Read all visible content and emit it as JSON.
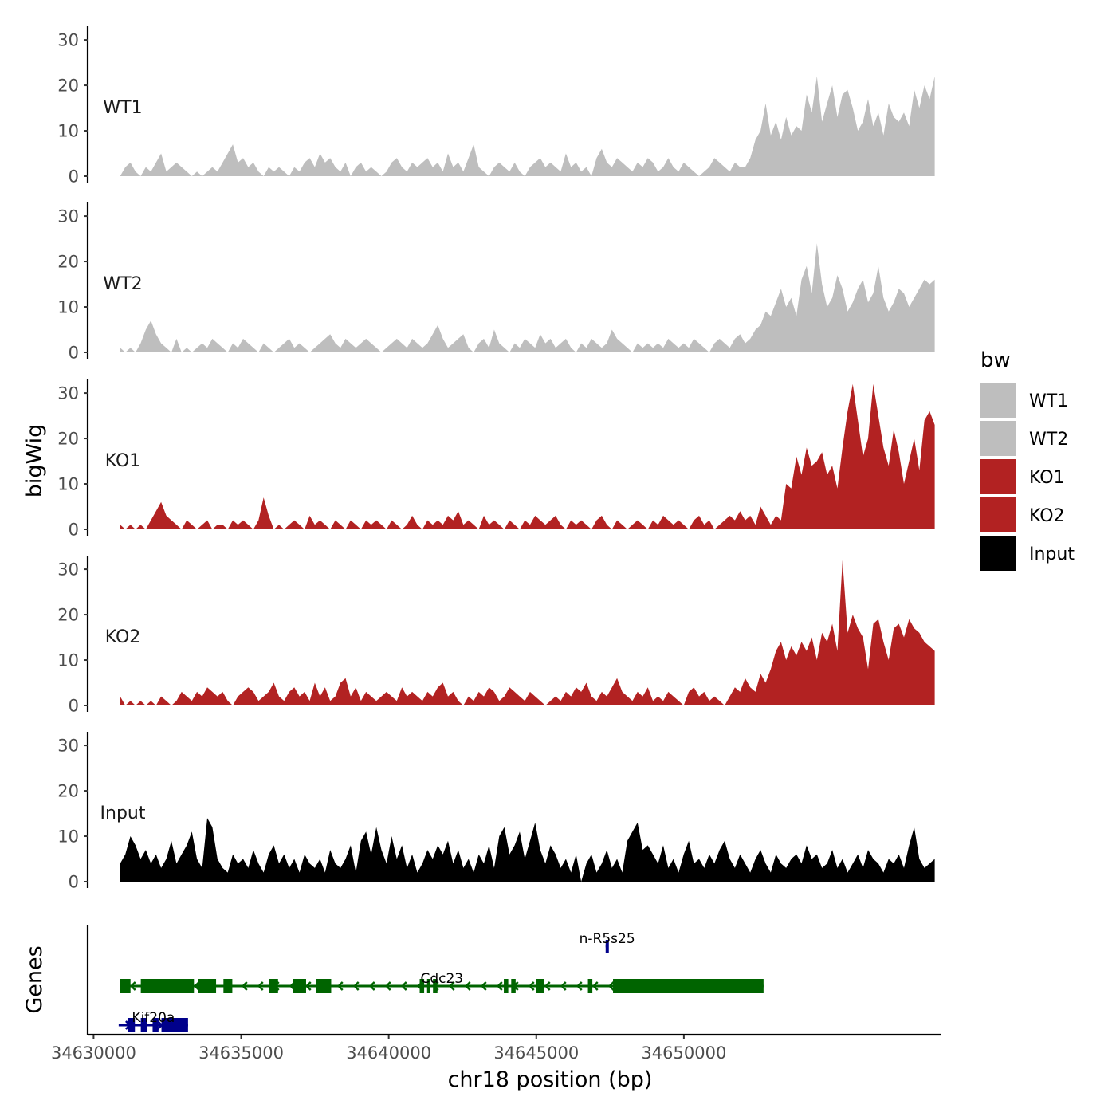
{
  "chart_data": {
    "type": "area",
    "ylabel": "bigWig",
    "genes_label": "Genes",
    "xlabel": "chr18 position (bp)",
    "xlim": [
      34629800,
      34658700
    ],
    "data_xrange": [
      34630900,
      34658500
    ],
    "ylim": [
      0,
      33
    ],
    "yticks": [
      "0",
      "10",
      "20",
      "30"
    ],
    "xticks": [
      {
        "value": 34630000,
        "label": "34630000"
      },
      {
        "value": 34635000,
        "label": "34635000"
      },
      {
        "value": 34640000,
        "label": "34640000"
      },
      {
        "value": 34645000,
        "label": "34645000"
      },
      {
        "value": 34650000,
        "label": "34650000"
      }
    ],
    "legend": {
      "title": "bw",
      "position": "right",
      "entries": [
        {
          "label": "WT1",
          "color": "#BEBEBE"
        },
        {
          "label": "WT2",
          "color": "#BEBEBE"
        },
        {
          "label": "KO1",
          "color": "#B22222"
        },
        {
          "label": "KO2",
          "color": "#B22222"
        },
        {
          "label": "Input",
          "color": "#000000"
        }
      ]
    },
    "series": [
      {
        "name": "WT1",
        "color": "#BEBEBE",
        "values": [
          0,
          2,
          3,
          1,
          0,
          2,
          1,
          3,
          5,
          1,
          2,
          3,
          2,
          1,
          0,
          1,
          0,
          1,
          2,
          1,
          3,
          5,
          7,
          3,
          4,
          2,
          3,
          1,
          0,
          2,
          1,
          2,
          1,
          0,
          2,
          1,
          3,
          4,
          2,
          5,
          3,
          4,
          2,
          1,
          3,
          0,
          2,
          3,
          1,
          2,
          1,
          0,
          1,
          3,
          4,
          2,
          1,
          3,
          2,
          3,
          4,
          2,
          3,
          1,
          5,
          2,
          3,
          1,
          4,
          7,
          2,
          1,
          0,
          2,
          3,
          2,
          1,
          3,
          1,
          0,
          2,
          3,
          4,
          2,
          3,
          2,
          1,
          5,
          2,
          3,
          1,
          2,
          0,
          4,
          6,
          3,
          2,
          4,
          3,
          2,
          1,
          3,
          2,
          4,
          3,
          1,
          2,
          4,
          2,
          1,
          3,
          2,
          1,
          0,
          1,
          2,
          4,
          3,
          2,
          1,
          3,
          2,
          2,
          4,
          8,
          10,
          16,
          9,
          12,
          8,
          13,
          9,
          11,
          10,
          18,
          14,
          22,
          12,
          16,
          20,
          13,
          18,
          19,
          15,
          10,
          12,
          17,
          11,
          14,
          9,
          16,
          13,
          12,
          14,
          11,
          19,
          15,
          20,
          17,
          22
        ]
      },
      {
        "name": "WT2",
        "color": "#BEBEBE",
        "values": [
          1,
          0,
          1,
          0,
          2,
          5,
          7,
          4,
          2,
          1,
          0,
          3,
          0,
          1,
          0,
          1,
          2,
          1,
          3,
          2,
          1,
          0,
          2,
          1,
          3,
          2,
          1,
          0,
          2,
          1,
          0,
          1,
          2,
          3,
          1,
          2,
          1,
          0,
          1,
          2,
          3,
          4,
          2,
          1,
          3,
          2,
          1,
          2,
          3,
          2,
          1,
          0,
          1,
          2,
          3,
          2,
          1,
          3,
          2,
          1,
          2,
          4,
          6,
          3,
          1,
          2,
          3,
          4,
          1,
          0,
          2,
          3,
          1,
          5,
          2,
          1,
          0,
          2,
          1,
          3,
          2,
          1,
          4,
          2,
          3,
          1,
          2,
          3,
          1,
          0,
          2,
          1,
          3,
          2,
          1,
          2,
          5,
          3,
          2,
          1,
          0,
          2,
          1,
          2,
          1,
          2,
          1,
          3,
          2,
          1,
          2,
          1,
          3,
          2,
          1,
          0,
          2,
          3,
          2,
          1,
          3,
          4,
          2,
          3,
          5,
          6,
          9,
          8,
          11,
          14,
          10,
          12,
          8,
          16,
          19,
          13,
          24,
          15,
          10,
          12,
          17,
          14,
          9,
          11,
          14,
          16,
          11,
          13,
          19,
          12,
          9,
          11,
          14,
          13,
          10,
          12,
          14,
          16,
          15,
          16
        ]
      },
      {
        "name": "KO1",
        "color": "#B22222",
        "values": [
          1,
          0,
          1,
          0,
          1,
          0,
          2,
          4,
          6,
          3,
          2,
          1,
          0,
          2,
          1,
          0,
          1,
          2,
          0,
          1,
          1,
          0,
          2,
          1,
          2,
          1,
          0,
          2,
          7,
          3,
          0,
          1,
          0,
          1,
          2,
          1,
          0,
          3,
          1,
          2,
          1,
          0,
          2,
          1,
          0,
          2,
          1,
          0,
          2,
          1,
          2,
          1,
          0,
          2,
          1,
          0,
          1,
          3,
          1,
          0,
          2,
          1,
          2,
          1,
          3,
          2,
          4,
          1,
          2,
          1,
          0,
          3,
          1,
          2,
          1,
          0,
          2,
          1,
          0,
          2,
          1,
          3,
          2,
          1,
          2,
          3,
          1,
          0,
          2,
          1,
          2,
          1,
          0,
          2,
          3,
          1,
          0,
          2,
          1,
          0,
          1,
          2,
          1,
          0,
          2,
          1,
          3,
          2,
          1,
          2,
          1,
          0,
          2,
          3,
          1,
          2,
          0,
          1,
          2,
          3,
          2,
          4,
          2,
          3,
          1,
          5,
          3,
          1,
          3,
          2,
          10,
          9,
          16,
          12,
          18,
          14,
          15,
          17,
          12,
          14,
          9,
          18,
          26,
          32,
          24,
          16,
          20,
          32,
          25,
          18,
          14,
          22,
          17,
          10,
          15,
          20,
          13,
          24,
          26,
          23
        ]
      },
      {
        "name": "KO2",
        "color": "#B22222",
        "values": [
          2,
          0,
          1,
          0,
          1,
          0,
          1,
          0,
          2,
          1,
          0,
          1,
          3,
          2,
          1,
          3,
          2,
          4,
          3,
          2,
          3,
          1,
          0,
          2,
          3,
          4,
          3,
          1,
          2,
          3,
          5,
          2,
          1,
          3,
          4,
          2,
          3,
          1,
          5,
          2,
          4,
          1,
          2,
          5,
          6,
          2,
          4,
          1,
          3,
          2,
          1,
          2,
          3,
          2,
          1,
          4,
          2,
          3,
          2,
          1,
          3,
          2,
          4,
          5,
          2,
          3,
          1,
          0,
          2,
          1,
          3,
          2,
          4,
          3,
          1,
          2,
          4,
          3,
          2,
          1,
          3,
          2,
          1,
          0,
          1,
          2,
          1,
          3,
          2,
          4,
          3,
          5,
          2,
          1,
          3,
          2,
          4,
          6,
          3,
          2,
          1,
          3,
          2,
          4,
          1,
          2,
          1,
          3,
          2,
          1,
          0,
          3,
          4,
          2,
          3,
          1,
          2,
          1,
          0,
          2,
          4,
          3,
          6,
          4,
          3,
          7,
          5,
          8,
          12,
          14,
          10,
          13,
          11,
          14,
          12,
          15,
          10,
          16,
          14,
          18,
          12,
          32,
          16,
          20,
          17,
          15,
          8,
          18,
          19,
          14,
          10,
          17,
          18,
          15,
          19,
          17,
          16,
          14,
          13,
          12
        ]
      },
      {
        "name": "Input",
        "color": "#000000",
        "values": [
          4,
          6,
          10,
          8,
          5,
          7,
          4,
          6,
          3,
          5,
          9,
          4,
          6,
          8,
          11,
          5,
          3,
          14,
          12,
          5,
          3,
          2,
          6,
          4,
          5,
          3,
          7,
          4,
          2,
          6,
          8,
          4,
          6,
          3,
          5,
          2,
          6,
          4,
          3,
          5,
          2,
          7,
          4,
          3,
          5,
          8,
          2,
          9,
          11,
          6,
          12,
          7,
          4,
          10,
          5,
          8,
          3,
          6,
          2,
          4,
          7,
          5,
          8,
          6,
          9,
          4,
          7,
          3,
          5,
          2,
          6,
          4,
          8,
          3,
          10,
          12,
          6,
          8,
          11,
          5,
          9,
          13,
          7,
          4,
          8,
          6,
          3,
          5,
          2,
          6,
          0,
          4,
          6,
          2,
          4,
          7,
          3,
          5,
          2,
          9,
          11,
          13,
          7,
          8,
          6,
          4,
          8,
          3,
          5,
          2,
          6,
          9,
          4,
          5,
          3,
          6,
          4,
          7,
          9,
          5,
          3,
          6,
          4,
          2,
          5,
          7,
          4,
          2,
          6,
          4,
          3,
          5,
          6,
          4,
          8,
          5,
          6,
          3,
          4,
          7,
          3,
          5,
          2,
          4,
          6,
          3,
          7,
          5,
          4,
          2,
          5,
          4,
          6,
          3,
          8,
          12,
          5,
          3,
          4,
          5
        ]
      }
    ],
    "genes": [
      {
        "name": "n-R5s25",
        "color": "#00008B",
        "strand": "+",
        "start": 34647350,
        "end": 34647450,
        "row": 0,
        "exons": [
          [
            34647350,
            34647450
          ]
        ]
      },
      {
        "name": "Cdc23",
        "color": "#006400",
        "strand": "-",
        "start": 34630900,
        "end": 34652700,
        "row": 1,
        "exons": [
          [
            34630900,
            34631250
          ],
          [
            34631600,
            34633400
          ],
          [
            34633550,
            34634150
          ],
          [
            34634400,
            34634700
          ],
          [
            34635950,
            34636250
          ],
          [
            34636750,
            34637200
          ],
          [
            34637550,
            34638050
          ],
          [
            34641050,
            34641200
          ],
          [
            34641300,
            34641400
          ],
          [
            34641500,
            34641650
          ],
          [
            34643900,
            34644050
          ],
          [
            34644150,
            34644300
          ],
          [
            34645000,
            34645250
          ],
          [
            34646750,
            34646900
          ],
          [
            34647600,
            34652700
          ]
        ]
      },
      {
        "name": "Kif20a",
        "color": "#00008B",
        "strand": "+",
        "start": 34630850,
        "end": 34633200,
        "row": 2,
        "exons": [
          [
            34631150,
            34631400
          ],
          [
            34631600,
            34631800
          ],
          [
            34632000,
            34632200
          ],
          [
            34632300,
            34633200
          ]
        ]
      }
    ]
  }
}
